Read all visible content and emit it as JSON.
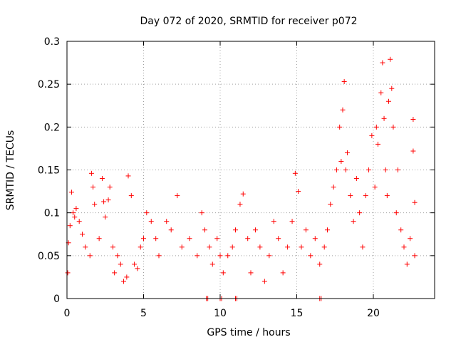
{
  "chart_data": {
    "type": "scatter",
    "title": "Day 072 of 2020, SRMTID for receiver p072",
    "xlabel": "GPS time / hours",
    "ylabel": "SRMTID / TECUs",
    "xlim": [
      0,
      24
    ],
    "ylim": [
      0,
      0.3
    ],
    "x_ticks": [
      0,
      5,
      10,
      15,
      20
    ],
    "x_tick_labels": [
      "0",
      "5",
      "10",
      "15",
      "20"
    ],
    "y_ticks": [
      0,
      0.05,
      0.1,
      0.15,
      0.2,
      0.25,
      0.3
    ],
    "y_tick_labels": [
      "0",
      "0.05",
      "0.1",
      "0.15",
      "0.2",
      "0.25",
      "0.3"
    ],
    "grid": true,
    "legend": "none",
    "marker": "plus",
    "color": "#ff0000",
    "series": [
      {
        "name": "SRMTID",
        "points": [
          [
            0.05,
            0.03
          ],
          [
            0.1,
            0.065
          ],
          [
            0.2,
            0.085
          ],
          [
            0.3,
            0.124
          ],
          [
            0.4,
            0.1
          ],
          [
            0.5,
            0.095
          ],
          [
            0.6,
            0.105
          ],
          [
            0.8,
            0.09
          ],
          [
            1.0,
            0.075
          ],
          [
            1.2,
            0.06
          ],
          [
            1.5,
            0.05
          ],
          [
            1.6,
            0.146
          ],
          [
            1.7,
            0.13
          ],
          [
            1.8,
            0.11
          ],
          [
            2.1,
            0.07
          ],
          [
            2.3,
            0.14
          ],
          [
            2.4,
            0.113
          ],
          [
            2.5,
            0.095
          ],
          [
            2.7,
            0.115
          ],
          [
            2.8,
            0.13
          ],
          [
            3.0,
            0.06
          ],
          [
            3.1,
            0.03
          ],
          [
            3.3,
            0.05
          ],
          [
            3.5,
            0.04
          ],
          [
            3.7,
            0.02
          ],
          [
            3.9,
            0.025
          ],
          [
            4.0,
            0.143
          ],
          [
            4.2,
            0.12
          ],
          [
            4.4,
            0.04
          ],
          [
            4.6,
            0.035
          ],
          [
            4.8,
            0.06
          ],
          [
            5.0,
            0.07
          ],
          [
            5.2,
            0.1
          ],
          [
            5.5,
            0.09
          ],
          [
            5.8,
            0.07
          ],
          [
            6.0,
            0.05
          ],
          [
            6.5,
            0.09
          ],
          [
            6.8,
            0.08
          ],
          [
            7.2,
            0.12
          ],
          [
            7.5,
            0.06
          ],
          [
            8.0,
            0.07
          ],
          [
            8.5,
            0.05
          ],
          [
            8.8,
            0.1
          ],
          [
            9.0,
            0.08
          ],
          [
            9.3,
            0.06
          ],
          [
            9.5,
            0.04
          ],
          [
            9.8,
            0.07
          ],
          [
            10.0,
            0.05
          ],
          [
            10.2,
            0.03
          ],
          [
            10.5,
            0.05
          ],
          [
            10.8,
            0.06
          ],
          [
            11.0,
            0.08
          ],
          [
            11.3,
            0.11
          ],
          [
            11.5,
            0.122
          ],
          [
            11.8,
            0.07
          ],
          [
            12.0,
            0.03
          ],
          [
            12.3,
            0.08
          ],
          [
            12.6,
            0.06
          ],
          [
            12.9,
            0.02
          ],
          [
            13.2,
            0.05
          ],
          [
            13.5,
            0.09
          ],
          [
            13.8,
            0.07
          ],
          [
            14.1,
            0.03
          ],
          [
            14.4,
            0.06
          ],
          [
            14.7,
            0.09
          ],
          [
            14.9,
            0.146
          ],
          [
            15.1,
            0.125
          ],
          [
            15.3,
            0.06
          ],
          [
            15.6,
            0.08
          ],
          [
            15.9,
            0.05
          ],
          [
            16.2,
            0.07
          ],
          [
            16.5,
            0.04
          ],
          [
            16.8,
            0.06
          ],
          [
            17.0,
            0.08
          ],
          [
            17.2,
            0.11
          ],
          [
            17.4,
            0.13
          ],
          [
            17.6,
            0.15
          ],
          [
            17.8,
            0.2
          ],
          [
            17.9,
            0.16
          ],
          [
            18.0,
            0.22
          ],
          [
            18.1,
            0.253
          ],
          [
            18.2,
            0.15
          ],
          [
            18.3,
            0.17
          ],
          [
            18.5,
            0.12
          ],
          [
            18.7,
            0.09
          ],
          [
            18.9,
            0.14
          ],
          [
            19.1,
            0.1
          ],
          [
            19.3,
            0.06
          ],
          [
            19.5,
            0.12
          ],
          [
            19.7,
            0.15
          ],
          [
            19.9,
            0.19
          ],
          [
            20.1,
            0.13
          ],
          [
            20.2,
            0.2
          ],
          [
            20.3,
            0.18
          ],
          [
            20.5,
            0.24
          ],
          [
            20.6,
            0.275
          ],
          [
            20.7,
            0.21
          ],
          [
            20.8,
            0.15
          ],
          [
            20.9,
            0.12
          ],
          [
            21.0,
            0.23
          ],
          [
            21.1,
            0.279
          ],
          [
            21.2,
            0.245
          ],
          [
            21.3,
            0.2
          ],
          [
            21.5,
            0.1
          ],
          [
            21.6,
            0.15
          ],
          [
            21.8,
            0.08
          ],
          [
            22.0,
            0.06
          ],
          [
            22.2,
            0.04
          ],
          [
            22.4,
            0.07
          ],
          [
            22.6,
            0.209
          ],
          [
            22.6,
            0.172
          ],
          [
            22.7,
            0.112
          ],
          [
            22.7,
            0.05
          ]
        ]
      }
    ],
    "zero_markers": [
      9.1,
      10.0,
      11.0,
      16.5
    ]
  }
}
